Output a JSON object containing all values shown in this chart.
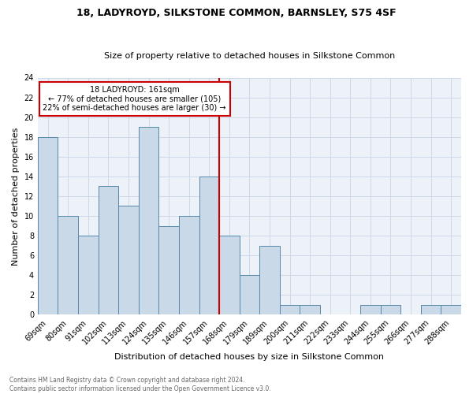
{
  "title1": "18, LADYROYD, SILKSTONE COMMON, BARNSLEY, S75 4SF",
  "title2": "Size of property relative to detached houses in Silkstone Common",
  "xlabel": "Distribution of detached houses by size in Silkstone Common",
  "ylabel": "Number of detached properties",
  "footnote1": "Contains HM Land Registry data © Crown copyright and database right 2024.",
  "footnote2": "Contains public sector information licensed under the Open Government Licence v3.0.",
  "annotation_line1": "18 LADYROYD: 161sqm",
  "annotation_line2": "← 77% of detached houses are smaller (105)",
  "annotation_line3": "22% of semi-detached houses are larger (30) →",
  "bar_labels": [
    "69sqm",
    "80sqm",
    "91sqm",
    "102sqm",
    "113sqm",
    "124sqm",
    "135sqm",
    "146sqm",
    "157sqm",
    "168sqm",
    "179sqm",
    "189sqm",
    "200sqm",
    "211sqm",
    "222sqm",
    "233sqm",
    "244sqm",
    "255sqm",
    "266sqm",
    "277sqm",
    "288sqm"
  ],
  "bar_values": [
    18,
    10,
    8,
    13,
    11,
    19,
    9,
    10,
    14,
    8,
    4,
    7,
    1,
    1,
    0,
    0,
    1,
    1,
    0,
    1,
    1
  ],
  "bar_color": "#c9d9e8",
  "bar_edge_color": "#5588aa",
  "vline_x_idx": 8,
  "vline_color": "#cc0000",
  "annotation_box_color": "#ffffff",
  "annotation_box_edge_color": "#cc0000",
  "grid_color": "#ccd8e8",
  "background_color": "#edf2f8",
  "ylim": [
    0,
    24
  ],
  "yticks": [
    0,
    2,
    4,
    6,
    8,
    10,
    12,
    14,
    16,
    18,
    20,
    22,
    24
  ],
  "title1_fontsize": 9,
  "title2_fontsize": 8,
  "ylabel_fontsize": 8,
  "xlabel_fontsize": 8,
  "tick_fontsize": 7,
  "annot_fontsize": 7,
  "footnote_fontsize": 5.5
}
